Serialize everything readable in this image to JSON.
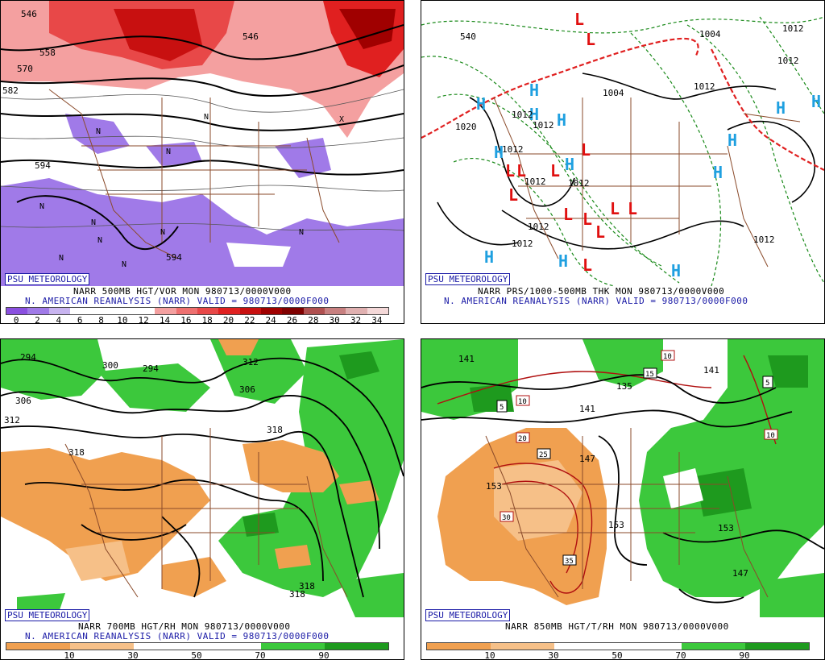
{
  "panels": {
    "p1": {
      "badge": "PSU METEOROLOGY",
      "caption1": "NARR 500MB HGT/VOR MON 980713/0000V000",
      "caption2": "N. AMERICAN REANALYSIS (NARR) VALID = 980713/0000F000",
      "colorbar": {
        "ticks": [
          "0",
          "2",
          "4",
          "6",
          "8",
          "10",
          "12",
          "14",
          "16",
          "18",
          "20",
          "22",
          "24",
          "26",
          "28",
          "30",
          "32",
          "34"
        ],
        "colors": [
          "#8a4fe0",
          "#a07ae8",
          "#c8b4f0",
          "#ffffff",
          "#ffffff",
          "#ffffff",
          "#ffffff",
          "#f4a0a0",
          "#ee7070",
          "#e84848",
          "#e02020",
          "#c81010",
          "#a00000",
          "#800000",
          "#b05050",
          "#c88080",
          "#e0b0b0",
          "#f4d8d8"
        ]
      },
      "contour_labels": [
        "546",
        "558",
        "570",
        "582",
        "594",
        "594",
        "546"
      ]
    },
    "p2": {
      "badge": "PSU METEOROLOGY",
      "caption1": "NARR PRS/1000-500MB THK MON 980713/0000V000",
      "caption2": "N. AMERICAN REANALYSIS (NARR) VALID = 980713/0000F000",
      "contour_labels": [
        "1004",
        "1004",
        "1012",
        "1012",
        "1012",
        "1012",
        "1012",
        "1012",
        "1012",
        "1012",
        "1020",
        "1012",
        "1012",
        "540",
        "1012"
      ]
    },
    "p3": {
      "badge": "PSU METEOROLOGY",
      "caption1": "NARR 700MB HGT/RH MON 980713/0000V000",
      "caption2": "N. AMERICAN REANALYSIS (NARR) VALID = 980713/0000F000",
      "colorbar": {
        "ticks": [
          "10",
          "30",
          "50",
          "70",
          "90"
        ],
        "colors": [
          "#f0a050",
          "#f6c088",
          "#ffffff",
          "#ffffff",
          "#3cc83c",
          "#1e9a1e"
        ]
      },
      "contour_labels": [
        "294",
        "300",
        "294",
        "306",
        "306",
        "312",
        "318",
        "318",
        "318",
        "318",
        "312"
      ]
    },
    "p4": {
      "badge": "PSU METEOROLOGY",
      "caption1": "NARR 850MB HGT/T/RH MON 980713/0000V000",
      "colorbar": {
        "ticks": [
          "10",
          "30",
          "50",
          "70",
          "90"
        ],
        "colors": [
          "#f0a050",
          "#f6c088",
          "#ffffff",
          "#ffffff",
          "#3cc83c",
          "#1e9a1e"
        ]
      },
      "contour_labels": [
        "141",
        "141",
        "135",
        "141",
        "147",
        "153",
        "153",
        "153",
        "147"
      ],
      "temp_labels": [
        "5",
        "10",
        "15",
        "10",
        "5",
        "20",
        "25",
        "30",
        "35",
        "10",
        "10"
      ]
    }
  },
  "colors": {
    "state_lines": "#8a4a2a",
    "badge_text": "#1a1aa6",
    "high_symbol": "#1fa0e0",
    "low_symbol": "#e01010",
    "front": "#e02020",
    "thickness_contour": "#1a8a1a"
  },
  "symbols": {
    "high": "H",
    "low": "L",
    "vort_max": "N",
    "vort_min": "X"
  }
}
